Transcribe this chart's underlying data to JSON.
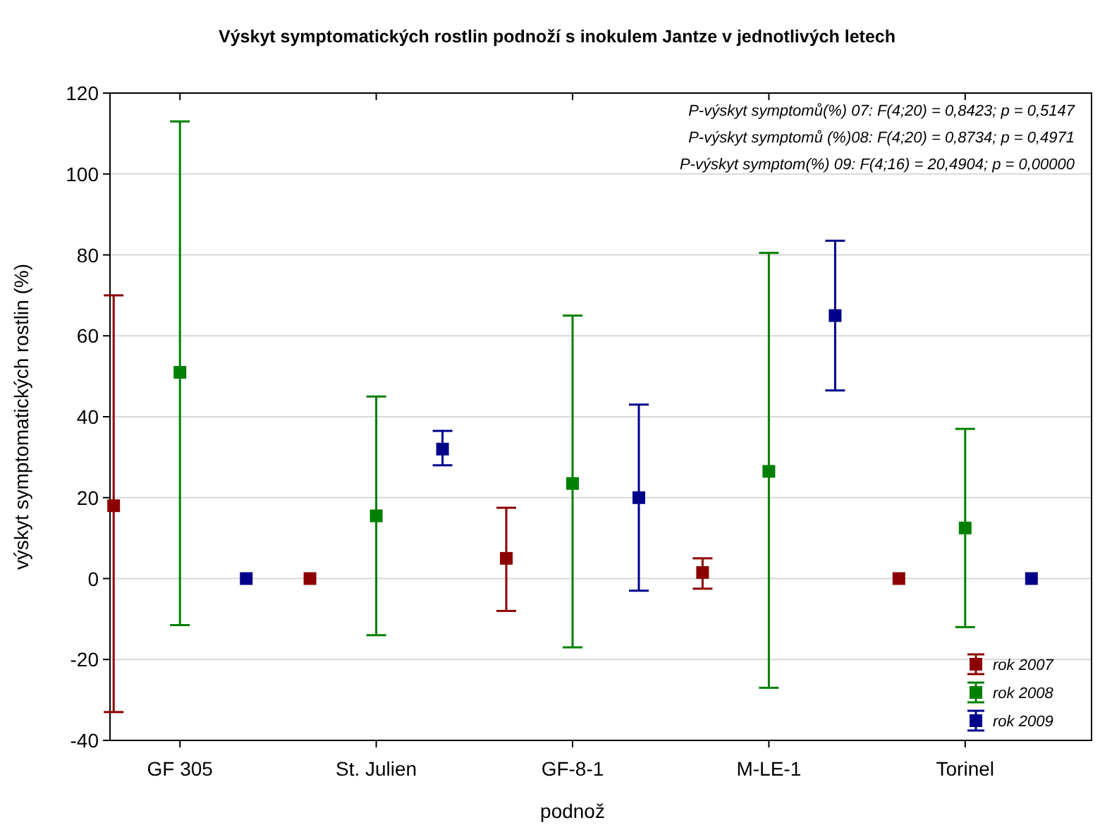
{
  "chart_data": {
    "type": "scatter",
    "title": "Výskyt symptomatických rostlin podnoží s inokulem Jantze v  jednotlivých letech",
    "xlabel": "podnož",
    "ylabel": "výskyt symptomatických rostlin (%)",
    "categories": [
      "GF 305",
      "St. Julien",
      "GF-8-1",
      "M-LE-1",
      "Torinel"
    ],
    "series": [
      {
        "name": "rok 2007",
        "color": "#8b0000",
        "values": [
          18,
          0,
          5,
          1.5,
          0
        ],
        "errors": [
          [
            -33,
            70
          ],
          null,
          [
            -8,
            17.5
          ],
          [
            -2.5,
            5
          ],
          null
        ]
      },
      {
        "name": "rok 2008",
        "color": "#008000",
        "values": [
          51,
          15.5,
          23.5,
          26.5,
          12.5
        ],
        "errors": [
          [
            -11.5,
            113
          ],
          [
            -14,
            45
          ],
          [
            -17,
            65
          ],
          [
            -27,
            80.5
          ],
          [
            -12,
            37
          ]
        ]
      },
      {
        "name": "rok 2009",
        "color": "#00008b",
        "values": [
          0,
          32,
          20,
          65,
          0
        ],
        "errors": [
          null,
          [
            28,
            36.5
          ],
          [
            -3,
            43
          ],
          [
            46.5,
            83.5
          ],
          null
        ]
      }
    ],
    "ylim": [
      -40,
      120
    ],
    "yticks": [
      -40,
      -20,
      0,
      20,
      40,
      60,
      80,
      100,
      120
    ],
    "grid": "y",
    "legend": "bottom right",
    "marker": "square",
    "annotations": [
      "P-výskyt symptomů(%) 07:   F(4;20) = 0,8423; p = 0,5147",
      "P-výskyt symptomů (%)08:   F(4;20) = 0,8734; p = 0,4971",
      "P-výskyt symptom(%) 09:   F(4;16) = 20,4904; p = 0,00000"
    ]
  }
}
